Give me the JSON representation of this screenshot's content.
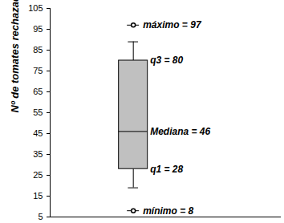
{
  "chart_data": {
    "type": "box",
    "ylabel": "Nº de tomates rechazados",
    "ylim": [
      5,
      105
    ],
    "yticks": [
      5,
      15,
      25,
      35,
      45,
      55,
      65,
      75,
      85,
      95,
      105
    ],
    "color": "#c0c0c0",
    "box": {
      "q1": 28,
      "median": 46,
      "q3": 80,
      "whisker_low": 19,
      "whisker_high": 89,
      "min": 8,
      "max": 97
    },
    "annotations": [
      {
        "label": "máximo = 97",
        "value": 97
      },
      {
        "label": "q3 = 80",
        "value": 80
      },
      {
        "label": "Mediana = 46",
        "value": 46
      },
      {
        "label": "q1 = 28",
        "value": 28
      },
      {
        "label": "mínimo = 8",
        "value": 8
      }
    ]
  }
}
